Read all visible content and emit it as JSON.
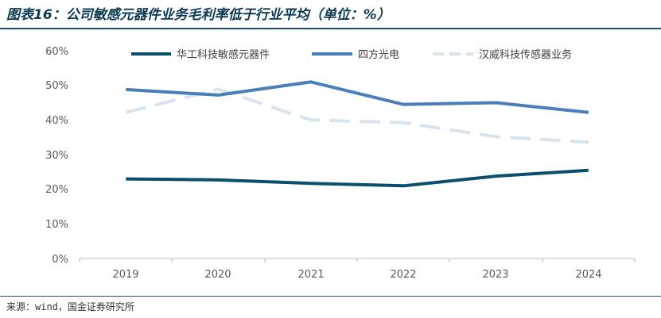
{
  "title": "图表16：公司敏感元器件业务毛利率低于行业平均（单位：%）",
  "source": "来源：wind，国金证券研究所",
  "colors": {
    "series1": "#0b4f6c",
    "series2": "#4a7ebb",
    "series3": "#d6e4f0",
    "title": "#0b3954",
    "rule": "#1f4e79"
  },
  "chart_data": {
    "type": "line",
    "x": [
      "2019",
      "2020",
      "2021",
      "2022",
      "2023",
      "2024"
    ],
    "ylim": [
      0,
      60
    ],
    "yticks": [
      "0%",
      "10%",
      "20%",
      "30%",
      "40%",
      "50%",
      "60%"
    ],
    "legend_position": "top",
    "grid": false,
    "series": [
      {
        "name": "华工科技敏感元器件",
        "style": "solid",
        "color": "#0b4f6c",
        "values": [
          23.0,
          22.7,
          21.7,
          21.0,
          23.8,
          25.5
        ]
      },
      {
        "name": "四方光电",
        "style": "solid",
        "color": "#4a7ebb",
        "values": [
          48.8,
          47.2,
          51.0,
          44.5,
          45.0,
          42.2
        ]
      },
      {
        "name": "汉威科技传感器业务",
        "style": "dashed",
        "color": "#d6e4f0",
        "values": [
          42.2,
          48.9,
          40.0,
          39.2,
          35.2,
          33.6
        ]
      }
    ]
  }
}
